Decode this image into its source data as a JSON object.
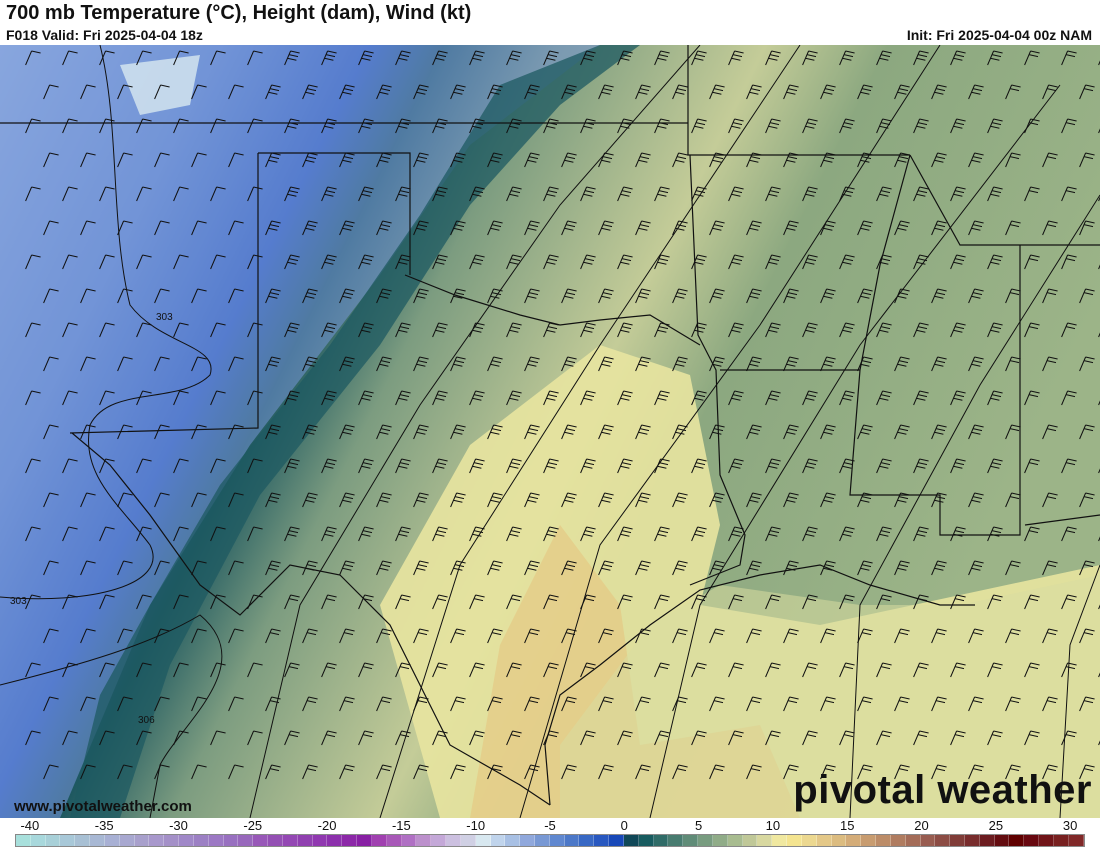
{
  "header": {
    "title": "700 mb Temperature (°C), Height (dam), Wind (kt)",
    "valid": "F018 Valid: Fri 2025-04-04 18z",
    "init": "Init: Fri 2025-04-04 00z NAM"
  },
  "map": {
    "contour_labels": [
      "303",
      "303",
      "306"
    ],
    "website": "www.pivotalweather.com",
    "logo": "pivotal weather"
  },
  "colorbar": {
    "unit": "°C",
    "min": -41,
    "max": 31,
    "tick_labels": [
      "-40",
      "-35",
      "-30",
      "-25",
      "-20",
      "-15",
      "-10",
      "-5",
      "0",
      "5",
      "10",
      "15",
      "20",
      "25",
      "30"
    ],
    "colors": [
      "#a8e0dc",
      "#a8d8dc",
      "#a8d0d8",
      "#a8c8d8",
      "#a8c0d4",
      "#a8b8d4",
      "#a8b0d4",
      "#a8a8d0",
      "#a8a0cc",
      "#a898cc",
      "#a490c8",
      "#a088c8",
      "#9c80c4",
      "#9c78c4",
      "#9870c0",
      "#9868bc",
      "#9858b8",
      "#9450b4",
      "#9448b4",
      "#9040b0",
      "#9038b0",
      "#8c30ac",
      "#8c28a8",
      "#8820a4",
      "#a040b0",
      "#a858b8",
      "#b070c4",
      "#bc90cc",
      "#c4a8d8",
      "#ccc0e0",
      "#d0d0e4",
      "#d8e8f0",
      "#c0d4ec",
      "#a8c0e4",
      "#90a8dc",
      "#7898d4",
      "#6088d0",
      "#4c78c8",
      "#3868c4",
      "#2858c0",
      "#1848b8",
      "#104858",
      "#185c60",
      "#306c68",
      "#487c70",
      "#608c78",
      "#789c80",
      "#90ac88",
      "#a8bc90",
      "#c0c898",
      "#d8d8a0",
      "#f0e8a0",
      "#f4e490",
      "#ecd890",
      "#e4c888",
      "#dcbc80",
      "#d4ac78",
      "#c89c70",
      "#bc8c68",
      "#b07c60",
      "#a46c58",
      "#985c50",
      "#8c4c44",
      "#803c38",
      "#782c2c",
      "#6c1c20",
      "#640c10",
      "#600000",
      "#680810",
      "#701418",
      "#782020",
      "#802828"
    ]
  }
}
